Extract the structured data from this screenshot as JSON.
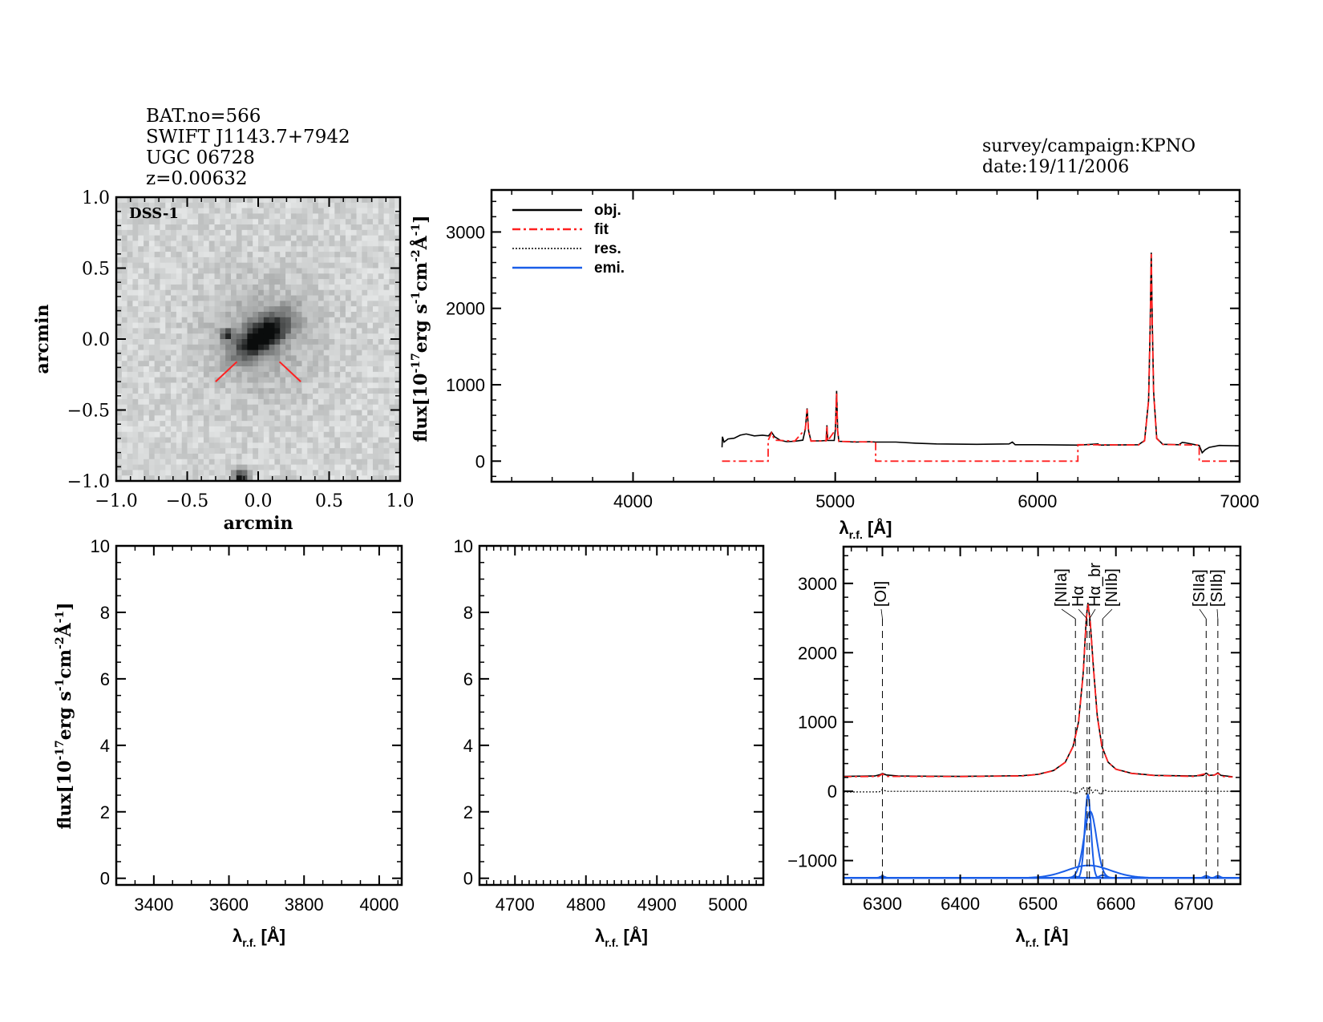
{
  "header": {
    "object_lines": [
      "BAT.no=566",
      "SWIFT J1143.7+7942",
      "UGC 06728",
      "z=0.00632"
    ],
    "survey_lines": [
      "survey/campaign:KPNO",
      "date:19/11/2006"
    ]
  },
  "colors": {
    "obj": "#000000",
    "fit": "#ff2020",
    "res": "#000000",
    "emi": "#1a5ee8",
    "marker": "#ff2020"
  },
  "flux_label": [
    {
      "t": "flux[10",
      "sup": false
    },
    {
      "t": "-17",
      "sup": true
    },
    {
      "t": "erg s",
      "sup": false
    },
    {
      "t": "-1",
      "sup": true
    },
    {
      "t": "cm",
      "sup": false
    },
    {
      "t": "-2",
      "sup": true
    },
    {
      "t": "Å",
      "sup": false
    },
    {
      "t": "-1",
      "sup": true
    },
    {
      "t": "]",
      "sup": false
    }
  ],
  "wave_label": {
    "symbol": "λ",
    "sub": "r.f.",
    "unit": " [Å]"
  },
  "chart_data": [
    {
      "type": "image",
      "image_label": "DSS-1",
      "xlabel": "arcmin",
      "ylabel": "arcmin",
      "xlim": [
        -1.0,
        1.0
      ],
      "ylim": [
        -1.0,
        1.0
      ],
      "xticks": [
        -1.0,
        -0.5,
        0.0,
        0.5,
        1.0
      ],
      "xtick_labels": [
        "−1.0",
        "−0.5",
        "0.0",
        "0.5",
        "1.0"
      ],
      "yticks": [
        -1.0,
        -0.5,
        0.0,
        0.5,
        1.0
      ],
      "ytick_labels": [
        "−1.0",
        "−0.5",
        "0.0",
        "0.5",
        "1.0"
      ],
      "markers": [
        [
          -0.3,
          -0.3,
          -0.15,
          -0.16
        ],
        [
          0.15,
          -0.16,
          0.3,
          -0.3
        ]
      ]
    },
    {
      "type": "line",
      "xlim": [
        3300,
        7000
      ],
      "ylim": [
        -270,
        3550
      ],
      "xticks": [
        4000,
        5000,
        6000,
        7000
      ],
      "xtick_labels": [
        "4000",
        "5000",
        "6000",
        "7000"
      ],
      "yticks": [
        0,
        1000,
        2000,
        3000
      ],
      "ytick_labels": [
        "0",
        "1000",
        "2000",
        "3000"
      ],
      "legend": {
        "position": "top-left",
        "entries": [
          {
            "label": "obj.",
            "key": "obj"
          },
          {
            "label": "fit",
            "key": "fit"
          },
          {
            "label": "res.",
            "key": "res"
          },
          {
            "label": "emi.",
            "key": "emi"
          }
        ]
      },
      "series": [
        {
          "key": "obj",
          "points": [
            [
              4440,
              180
            ],
            [
              4442,
              320
            ],
            [
              4450,
              250
            ],
            [
              4470,
              290
            ],
            [
              4500,
              300
            ],
            [
              4530,
              340
            ],
            [
              4560,
              355
            ],
            [
              4600,
              330
            ],
            [
              4640,
              340
            ],
            [
              4670,
              330
            ],
            [
              4685,
              380
            ],
            [
              4700,
              320
            ],
            [
              4730,
              270
            ],
            [
              4760,
              255
            ],
            [
              4800,
              260
            ],
            [
              4840,
              275
            ],
            [
              4852,
              420
            ],
            [
              4861,
              690
            ],
            [
              4868,
              400
            ],
            [
              4880,
              265
            ],
            [
              4930,
              265
            ],
            [
              4955,
              270
            ],
            [
              4959,
              470
            ],
            [
              4963,
              270
            ],
            [
              4995,
              270
            ],
            [
              5001,
              420
            ],
            [
              5007,
              920
            ],
            [
              5012,
              400
            ],
            [
              5018,
              260
            ],
            [
              5100,
              250
            ],
            [
              5170,
              255
            ],
            [
              5200,
              250
            ],
            [
              5300,
              250
            ],
            [
              5400,
              235
            ],
            [
              5500,
              225
            ],
            [
              5700,
              220
            ],
            [
              5860,
              225
            ],
            [
              5876,
              250
            ],
            [
              5890,
              215
            ],
            [
              6000,
              215
            ],
            [
              6200,
              210
            ],
            [
              6300,
              225
            ],
            [
              6305,
              210
            ],
            [
              6500,
              215
            ],
            [
              6530,
              270
            ],
            [
              6550,
              800
            ],
            [
              6558,
              1800
            ],
            [
              6563,
              2730
            ],
            [
              6568,
              1800
            ],
            [
              6575,
              900
            ],
            [
              6590,
              300
            ],
            [
              6620,
              220
            ],
            [
              6700,
              215
            ],
            [
              6716,
              245
            ],
            [
              6731,
              240
            ],
            [
              6780,
              215
            ],
            [
              6800,
              205
            ],
            [
              6815,
              110
            ],
            [
              6830,
              150
            ],
            [
              6850,
              180
            ],
            [
              6900,
              205
            ],
            [
              7000,
              200
            ]
          ]
        },
        {
          "key": "fit",
          "points": [
            [
              4440,
              0
            ],
            [
              4668,
              0
            ],
            [
              4668,
              270
            ],
            [
              4685,
              370
            ],
            [
              4700,
              275
            ],
            [
              4800,
              262
            ],
            [
              4852,
              420
            ],
            [
              4861,
              680
            ],
            [
              4868,
              390
            ],
            [
              4880,
              262
            ],
            [
              4955,
              265
            ],
            [
              4959,
              460
            ],
            [
              4963,
              265
            ],
            [
              5001,
              410
            ],
            [
              5007,
              900
            ],
            [
              5012,
              390
            ],
            [
              5018,
              258
            ],
            [
              5200,
              250
            ],
            [
              5200,
              0
            ],
            [
              6200,
              0
            ],
            [
              6200,
              215
            ],
            [
              6500,
              212
            ],
            [
              6530,
              265
            ],
            [
              6550,
              790
            ],
            [
              6558,
              1790
            ],
            [
              6563,
              2710
            ],
            [
              6568,
              1790
            ],
            [
              6575,
              890
            ],
            [
              6590,
              295
            ],
            [
              6620,
              218
            ],
            [
              6800,
              210
            ],
            [
              6800,
              0
            ],
            [
              7000,
              0
            ]
          ]
        }
      ]
    },
    {
      "type": "line",
      "xlim": [
        3300,
        4060
      ],
      "ylim": [
        -0.2,
        10.0
      ],
      "xticks": [
        3400,
        3600,
        3800,
        4000
      ],
      "xtick_labels": [
        "3400",
        "3600",
        "3800",
        "4000"
      ],
      "yticks": [
        0,
        2,
        4,
        6,
        8,
        10
      ],
      "ytick_labels": [
        "0",
        "2",
        "4",
        "6",
        "8",
        "10"
      ],
      "series": []
    },
    {
      "type": "line",
      "xlim": [
        4650,
        5050
      ],
      "ylim": [
        -0.2,
        10.0
      ],
      "xticks": [
        4700,
        4800,
        4900,
        5000
      ],
      "xtick_labels": [
        "4700",
        "4800",
        "4900",
        "5000"
      ],
      "yticks": [
        0,
        2,
        4,
        6,
        8,
        10
      ],
      "ytick_labels": [
        "0",
        "2",
        "4",
        "6",
        "8",
        "10"
      ],
      "series": []
    },
    {
      "type": "line",
      "xlim": [
        6250,
        6760
      ],
      "ylim": [
        -1340,
        3530
      ],
      "xticks": [
        6300,
        6400,
        6500,
        6600,
        6700
      ],
      "xtick_labels": [
        "6300",
        "6400",
        "6500",
        "6600",
        "6700"
      ],
      "yticks": [
        -1000,
        0,
        1000,
        2000,
        3000
      ],
      "ytick_labels": [
        "−1000",
        "0",
        "1000",
        "2000",
        "3000"
      ],
      "line_markers": [
        {
          "label": "[OI]",
          "wavelength": 6300
        },
        {
          "label": "[NIIa]",
          "wavelength": 6548
        },
        {
          "label": "Hα",
          "wavelength": 6563
        },
        {
          "label": "Hα_br",
          "wavelength": 6566
        },
        {
          "label": "[NIIb]",
          "wavelength": 6583
        },
        {
          "label": "[SIIa]",
          "wavelength": 6716
        },
        {
          "label": "[SIIb]",
          "wavelength": 6731
        }
      ],
      "series": [
        {
          "key": "obj",
          "points": [
            [
              6250,
              215
            ],
            [
              6290,
              220
            ],
            [
              6297,
              240
            ],
            [
              6300,
              258
            ],
            [
              6305,
              235
            ],
            [
              6320,
              220
            ],
            [
              6400,
              215
            ],
            [
              6480,
              225
            ],
            [
              6500,
              245
            ],
            [
              6520,
              300
            ],
            [
              6535,
              420
            ],
            [
              6545,
              650
            ],
            [
              6552,
              1000
            ],
            [
              6558,
              1700
            ],
            [
              6562,
              2500
            ],
            [
              6564,
              2720
            ],
            [
              6567,
              2450
            ],
            [
              6571,
              1800
            ],
            [
              6576,
              1100
            ],
            [
              6582,
              650
            ],
            [
              6590,
              420
            ],
            [
              6600,
              320
            ],
            [
              6620,
              260
            ],
            [
              6650,
              230
            ],
            [
              6700,
              220
            ],
            [
              6712,
              230
            ],
            [
              6716,
              262
            ],
            [
              6720,
              230
            ],
            [
              6727,
              235
            ],
            [
              6731,
              268
            ],
            [
              6735,
              230
            ],
            [
              6750,
              210
            ]
          ]
        },
        {
          "key": "fit",
          "points": [
            [
              6250,
              210
            ],
            [
              6295,
              215
            ],
            [
              6300,
              250
            ],
            [
              6305,
              215
            ],
            [
              6400,
              212
            ],
            [
              6480,
              222
            ],
            [
              6500,
              242
            ],
            [
              6520,
              298
            ],
            [
              6535,
              418
            ],
            [
              6545,
              645
            ],
            [
              6552,
              990
            ],
            [
              6558,
              1690
            ],
            [
              6562,
              2480
            ],
            [
              6564,
              2700
            ],
            [
              6567,
              2440
            ],
            [
              6571,
              1790
            ],
            [
              6576,
              1090
            ],
            [
              6582,
              645
            ],
            [
              6590,
              418
            ],
            [
              6600,
              318
            ],
            [
              6620,
              258
            ],
            [
              6650,
              228
            ],
            [
              6700,
              215
            ],
            [
              6716,
              255
            ],
            [
              6722,
              215
            ],
            [
              6731,
              258
            ],
            [
              6737,
              215
            ],
            [
              6750,
              205
            ]
          ]
        },
        {
          "key": "res",
          "points": [
            [
              6250,
              -10
            ],
            [
              6296,
              -8
            ],
            [
              6300,
              25
            ],
            [
              6305,
              0
            ],
            [
              6400,
              0
            ],
            [
              6540,
              0
            ],
            [
              6548,
              -30
            ],
            [
              6553,
              -10
            ],
            [
              6558,
              60
            ],
            [
              6562,
              -40
            ],
            [
              6566,
              70
            ],
            [
              6570,
              -20
            ],
            [
              6575,
              30
            ],
            [
              6580,
              -50
            ],
            [
              6585,
              20
            ],
            [
              6590,
              0
            ],
            [
              6700,
              0
            ],
            [
              6760,
              0
            ]
          ]
        }
      ],
      "emission": {
        "offset": -1250,
        "components": [
          {
            "name": "[OI]",
            "center": 6300,
            "amplitude": 25,
            "sigma": 3
          },
          {
            "name": "Hα",
            "center": 6564,
            "amplitude": 1200,
            "sigma": 4
          },
          {
            "name": "Hα_br",
            "center": 6567,
            "amplitude": 960,
            "sigma": 8
          },
          {
            "name": "Hα_vbr",
            "center": 6565,
            "amplitude": 180,
            "sigma": 28
          },
          {
            "name": "[NIIa]",
            "center": 6548,
            "amplitude": 20,
            "sigma": 4
          },
          {
            "name": "[NIIb]",
            "center": 6583,
            "amplitude": 40,
            "sigma": 4
          },
          {
            "name": "[SIIa]",
            "center": 6716,
            "amplitude": 30,
            "sigma": 3
          },
          {
            "name": "[SIIb]",
            "center": 6731,
            "amplitude": 30,
            "sigma": 3
          }
        ]
      }
    }
  ]
}
